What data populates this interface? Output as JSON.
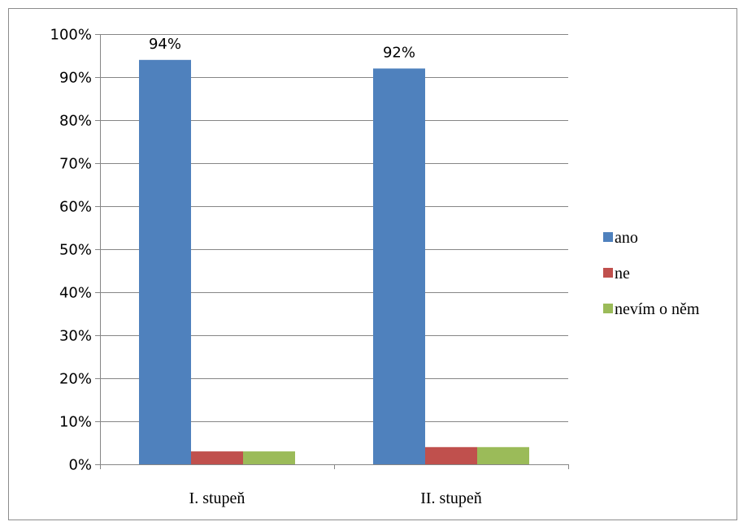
{
  "chart_data": {
    "type": "bar",
    "categories": [
      "I. stupeň",
      "II. stupeň"
    ],
    "series": [
      {
        "name": "ano",
        "values": [
          94,
          92
        ],
        "color": "#4f81bd"
      },
      {
        "name": "ne",
        "values": [
          3,
          4
        ],
        "color": "#c0504d"
      },
      {
        "name": "nevím o něm",
        "values": [
          3,
          4
        ],
        "color": "#9bbb59"
      }
    ],
    "data_labels": {
      "ano": [
        "94%",
        "92%"
      ]
    },
    "ylim": [
      0,
      100
    ],
    "yticks": [
      0,
      10,
      20,
      30,
      40,
      50,
      60,
      70,
      80,
      90,
      100
    ],
    "ytick_format": "percent",
    "grid": true,
    "legend_position": "right",
    "title": "",
    "xlabel": "",
    "ylabel": ""
  }
}
